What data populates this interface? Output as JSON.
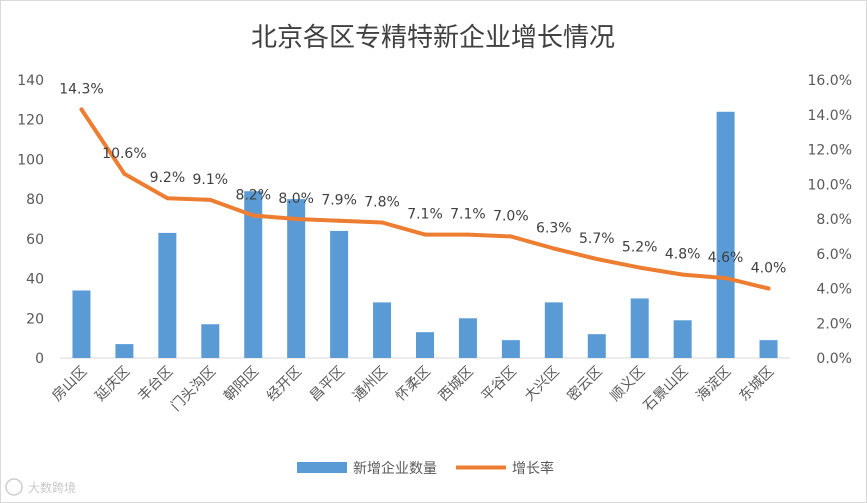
{
  "chart_data": {
    "type": "bar",
    "title": "北京各区专精特新企业增长情况",
    "categories": [
      "房山区",
      "延庆区",
      "丰台区",
      "门头沟区",
      "朝阳区",
      "经开区",
      "昌平区",
      "通州区",
      "怀柔区",
      "西城区",
      "平谷区",
      "大兴区",
      "密云区",
      "顺义区",
      "石景山区",
      "海淀区",
      "东城区"
    ],
    "series": [
      {
        "name": "新增企业数量",
        "type": "bar",
        "axis": "left",
        "color": "#5B9BD5",
        "values": [
          34,
          7,
          63,
          17,
          84,
          80,
          64,
          28,
          13,
          20,
          9,
          28,
          12,
          30,
          19,
          124,
          9
        ]
      },
      {
        "name": "增长率",
        "type": "line",
        "axis": "right",
        "color": "#ED7D31",
        "values": [
          14.3,
          10.6,
          9.2,
          9.1,
          8.2,
          8.0,
          7.9,
          7.8,
          7.1,
          7.1,
          7.0,
          6.3,
          5.7,
          5.2,
          4.8,
          4.6,
          4.0
        ],
        "data_labels": [
          "14.3%",
          "10.6%",
          "9.2%",
          "9.1%",
          "8.2%",
          "8.0%",
          "7.9%",
          "7.8%",
          "7.1%",
          "7.1%",
          "7.0%",
          "6.3%",
          "5.7%",
          "5.2%",
          "4.8%",
          "4.6%",
          "4.0%"
        ]
      }
    ],
    "y_left": {
      "min": 0,
      "max": 140,
      "ticks": [
        "0",
        "20",
        "40",
        "60",
        "80",
        "100",
        "120",
        "140"
      ]
    },
    "y_right": {
      "min": 0,
      "max": 16,
      "ticks": [
        "0.0%",
        "2.0%",
        "4.0%",
        "6.0%",
        "8.0%",
        "10.0%",
        "12.0%",
        "14.0%",
        "16.0%"
      ]
    },
    "legend": {
      "position": "bottom",
      "items": [
        "新增企业数量",
        "增长率"
      ]
    },
    "grid": false
  },
  "watermark": "大数跨境"
}
